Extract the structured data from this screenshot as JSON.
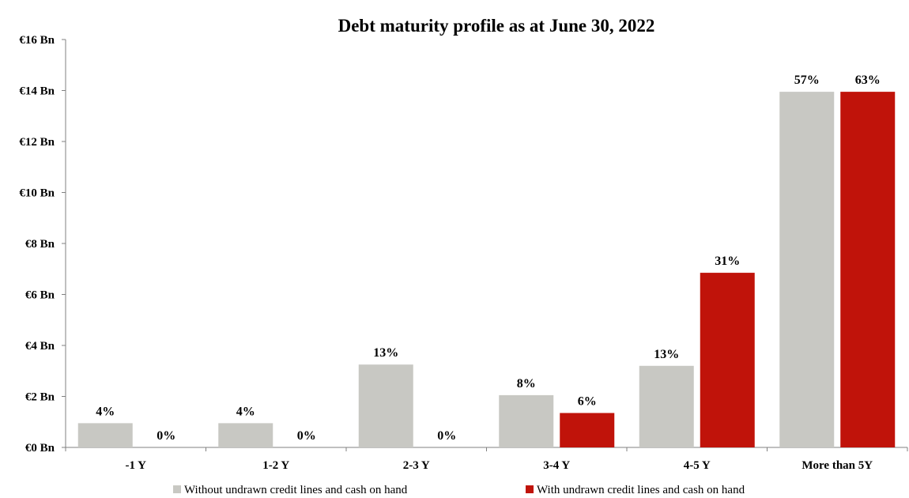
{
  "chart_data": {
    "type": "bar",
    "title": "Debt maturity profile as at June 30, 2022",
    "xlabel": "",
    "ylabel": "",
    "ylim": [
      0,
      16
    ],
    "y_ticks": [
      "€0 Bn",
      "€2 Bn",
      "€4 Bn",
      "€6 Bn",
      "€8 Bn",
      "€10 Bn",
      "€12 Bn",
      "€14 Bn",
      "€16 Bn"
    ],
    "y_tick_values": [
      0,
      2,
      4,
      6,
      8,
      10,
      12,
      14,
      16
    ],
    "categories": [
      "-1 Y",
      "1-2 Y",
      "2-3 Y",
      "3-4 Y",
      "4-5 Y",
      "More than 5Y"
    ],
    "grid": false,
    "legend_position": "bottom",
    "series": [
      {
        "name": "Without undrawn credit lines and cash on hand",
        "color": "#c8c8c3",
        "values": [
          0.95,
          0.95,
          3.25,
          2.05,
          3.2,
          13.95
        ],
        "labels": [
          "4%",
          "4%",
          "13%",
          "8%",
          "13%",
          "57%"
        ]
      },
      {
        "name": "With undrawn credit lines and cash on hand",
        "color": "#c0130a",
        "values": [
          0,
          0,
          0,
          1.35,
          6.85,
          13.95
        ],
        "labels": [
          "0%",
          "0%",
          "0%",
          "6%",
          "31%",
          "63%"
        ]
      }
    ]
  }
}
